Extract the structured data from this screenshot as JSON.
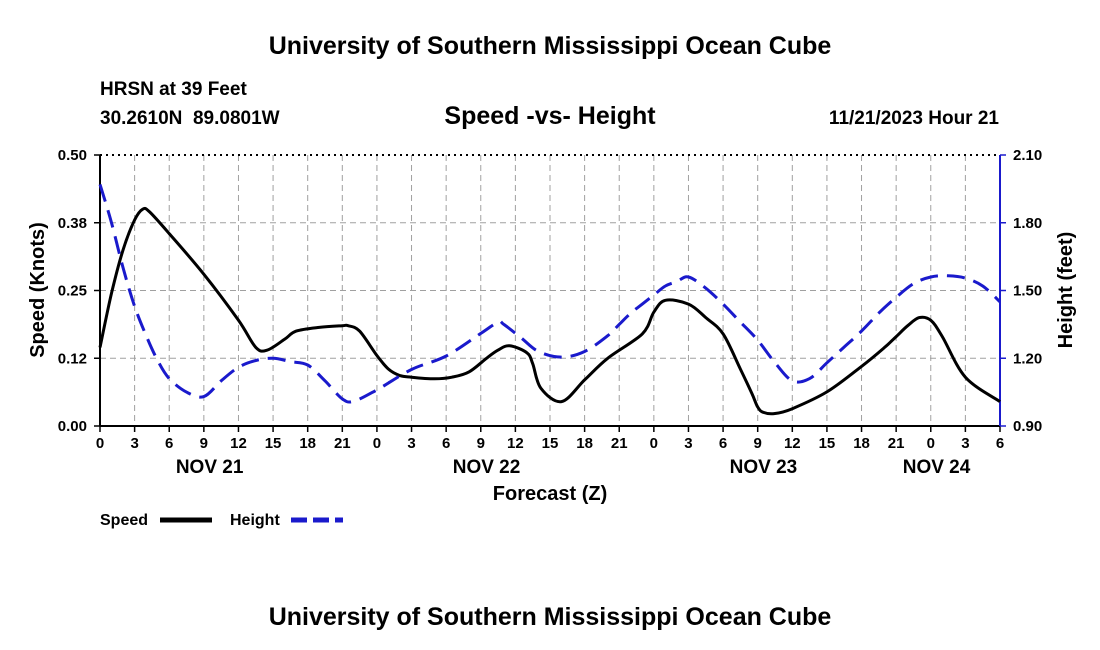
{
  "title": "University of Southern Mississippi Ocean Cube",
  "footer_title": "University of Southern Mississippi Ocean Cube",
  "station": {
    "name": "HRSN at 39 Feet",
    "coords": "30.2610N  89.0801W",
    "datetime": "11/21/2023 Hour 21"
  },
  "colors": {
    "speed": "#000000",
    "height": "#1a1acc",
    "grid": "#a0a0a0",
    "right_axis": "#1a1acc"
  },
  "chart_data": {
    "type": "line",
    "title": "Speed -vs- Height",
    "xlabel": "Forecast (Z)",
    "ylabel": "Speed (Knots)",
    "y2label": "Height (feet)",
    "xlim": [
      0,
      78
    ],
    "ylim": [
      0,
      0.5
    ],
    "y2lim": [
      0.9,
      2.1
    ],
    "x_ticks": [
      0,
      3,
      6,
      9,
      12,
      15,
      18,
      21,
      24,
      27,
      30,
      33,
      36,
      39,
      42,
      45,
      48,
      51,
      54,
      57,
      60,
      63,
      66,
      69,
      72,
      75,
      78
    ],
    "x_tick_labels": [
      "0",
      "3",
      "6",
      "9",
      "12",
      "15",
      "18",
      "21",
      "0",
      "3",
      "6",
      "9",
      "12",
      "15",
      "18",
      "21",
      "0",
      "3",
      "6",
      "9",
      "12",
      "15",
      "18",
      "21",
      "0",
      "3",
      "6"
    ],
    "y_ticks": [
      0,
      0.125,
      0.25,
      0.375,
      0.5
    ],
    "y_tick_labels": [
      "0.00",
      "0.12",
      "0.25",
      "0.38",
      "0.50"
    ],
    "y2_ticks": [
      0.9,
      1.2,
      1.5,
      1.8,
      2.1
    ],
    "y2_tick_labels": [
      "0.90",
      "1.20",
      "1.50",
      "1.80",
      "2.10"
    ],
    "date_labels": [
      {
        "x": 9.5,
        "label": "NOV 21"
      },
      {
        "x": 33.5,
        "label": "NOV 22"
      },
      {
        "x": 57.5,
        "label": "NOV 23"
      },
      {
        "x": 72.5,
        "label": "NOV 24"
      }
    ],
    "legend": {
      "speed": "Speed",
      "height": "Height"
    },
    "series": [
      {
        "name": "Speed",
        "axis": "left",
        "style": "solid",
        "x": [
          0,
          1,
          2,
          3,
          3.7,
          4.3,
          6,
          9,
          12,
          13.5,
          14.5,
          16,
          17,
          19,
          21,
          21.5,
          22.5,
          24,
          25,
          26,
          27,
          29,
          30.5,
          32,
          33.5,
          34.5,
          35.5,
          37,
          37.5,
          38.2,
          40,
          42,
          44,
          47,
          48,
          49,
          51,
          52.5,
          54,
          55.5,
          56.5,
          57,
          57.5,
          58.5,
          60,
          63,
          66,
          68,
          69,
          70,
          71,
          72,
          73,
          75,
          78
        ],
        "y": [
          0.145,
          0.245,
          0.325,
          0.38,
          0.4,
          0.395,
          0.355,
          0.28,
          0.195,
          0.145,
          0.14,
          0.16,
          0.175,
          0.182,
          0.185,
          0.185,
          0.175,
          0.13,
          0.105,
          0.093,
          0.09,
          0.087,
          0.09,
          0.1,
          0.125,
          0.14,
          0.148,
          0.135,
          0.115,
          0.07,
          0.045,
          0.085,
          0.125,
          0.17,
          0.21,
          0.232,
          0.225,
          0.2,
          0.17,
          0.105,
          0.06,
          0.035,
          0.025,
          0.023,
          0.032,
          0.063,
          0.11,
          0.145,
          0.165,
          0.185,
          0.2,
          0.195,
          0.165,
          0.09,
          0.045
        ]
      },
      {
        "name": "Height",
        "axis": "right",
        "style": "dashed",
        "x": [
          0,
          1,
          2,
          3,
          4,
          5,
          6,
          7.5,
          9,
          10.5,
          12,
          13.5,
          15,
          16.5,
          18,
          19.5,
          21,
          22,
          24,
          27,
          30,
          33,
          34.5,
          35,
          36.5,
          38,
          40,
          42,
          44,
          45,
          46,
          47,
          48,
          49,
          50,
          51,
          52.5,
          54,
          55.5,
          57,
          58.5,
          60,
          61.5,
          63,
          64.5,
          66,
          67.5,
          69,
          70.5,
          72,
          73.5,
          75,
          76.5,
          78
        ],
        "y": [
          1.97,
          1.8,
          1.6,
          1.43,
          1.3,
          1.19,
          1.11,
          1.05,
          1.03,
          1.1,
          1.16,
          1.19,
          1.2,
          1.185,
          1.17,
          1.1,
          1.02,
          1.01,
          1.06,
          1.15,
          1.21,
          1.31,
          1.36,
          1.35,
          1.29,
          1.23,
          1.205,
          1.23,
          1.3,
          1.35,
          1.4,
          1.44,
          1.48,
          1.52,
          1.54,
          1.56,
          1.51,
          1.44,
          1.36,
          1.28,
          1.18,
          1.1,
          1.11,
          1.18,
          1.25,
          1.32,
          1.4,
          1.47,
          1.53,
          1.56,
          1.565,
          1.555,
          1.52,
          1.45
        ]
      }
    ]
  }
}
